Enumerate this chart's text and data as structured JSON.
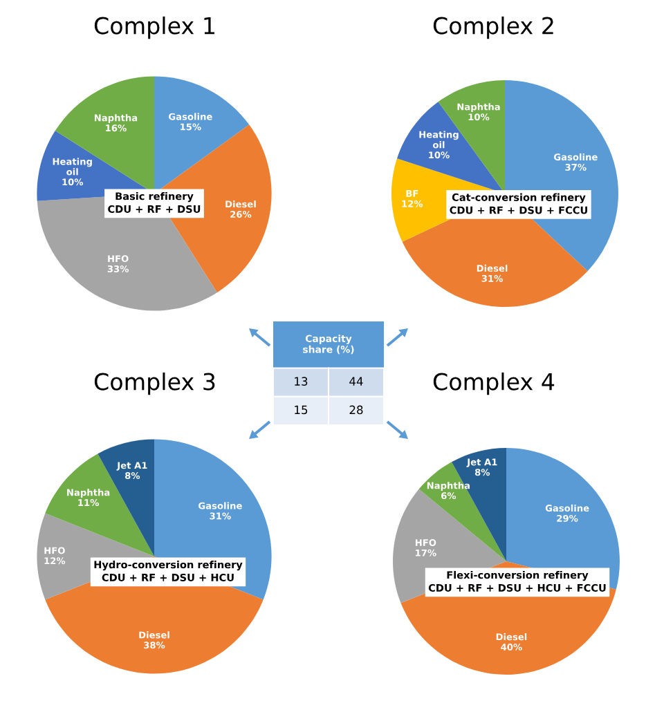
{
  "chart_data": [
    {
      "type": "pie",
      "title": "Complex 1",
      "categories": [
        "Gasoline",
        "Diesel",
        "HFO",
        "Heating\noil",
        "Naphtha"
      ],
      "values": [
        15,
        26,
        33,
        10,
        16
      ],
      "value_labels": [
        "15%",
        "26%",
        "33%",
        "10%",
        "16%"
      ],
      "colors": [
        "#5b9bd5",
        "#ed7d31",
        "#a5a5a5",
        "#4472c4",
        "#70ad47"
      ],
      "annotations": [
        "Basic refinery\nCDU + RF + DSU"
      ]
    },
    {
      "type": "pie",
      "title": "Complex 2",
      "categories": [
        "Gasoline",
        "Diesel",
        "BF",
        "Heating\noil",
        "Naphtha"
      ],
      "values": [
        37,
        31,
        12,
        10,
        10
      ],
      "value_labels": [
        "37%",
        "31%",
        "12%",
        "10%",
        "10%"
      ],
      "colors": [
        "#5b9bd5",
        "#ed7d31",
        "#ffc000",
        "#4472c4",
        "#70ad47"
      ],
      "annotations": [
        "Cat-conversion refinery\nCDU + RF + DSU + FCCU"
      ]
    },
    {
      "type": "pie",
      "title": "Complex 3",
      "categories": [
        "Gasoline",
        "Diesel",
        "HFO",
        "Naphtha",
        "Jet A1"
      ],
      "values": [
        31,
        38,
        12,
        11,
        8
      ],
      "value_labels": [
        "31%",
        "38%",
        "12%",
        "11%",
        "8%"
      ],
      "colors": [
        "#5b9bd5",
        "#ed7d31",
        "#a5a5a5",
        "#70ad47",
        "#255e91"
      ],
      "annotations": [
        "Hydro-conversion refinery\nCDU + RF + DSU + HCU"
      ]
    },
    {
      "type": "pie",
      "title": "Complex 4",
      "categories": [
        "Gasoline",
        "Diesel",
        "HFO",
        "Naphtha",
        "Jet A1"
      ],
      "values": [
        29,
        40,
        17,
        6,
        8
      ],
      "value_labels": [
        "29%",
        "40%",
        "17%",
        "6%",
        "8%"
      ],
      "colors": [
        "#5b9bd5",
        "#ed7d31",
        "#a5a5a5",
        "#70ad47",
        "#255e91"
      ],
      "annotations": [
        "Flexi-conversion refinery\nCDU + RF + DSU + HCU + FCCU"
      ]
    },
    {
      "type": "other",
      "title": "Capacity\nshare (%)",
      "annotations": [
        "13",
        "44",
        "15",
        "28"
      ]
    }
  ]
}
